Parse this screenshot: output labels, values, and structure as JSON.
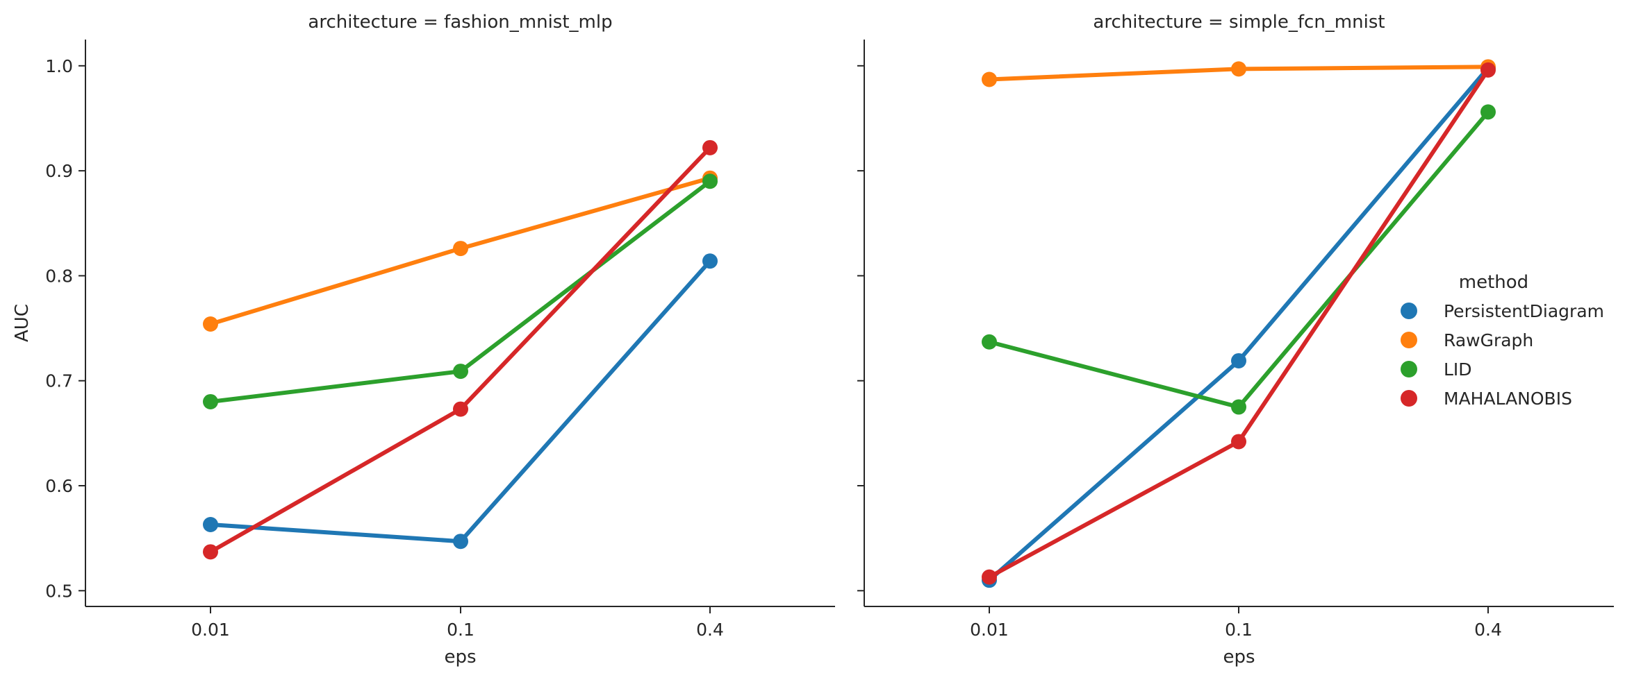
{
  "chart_data": [
    {
      "type": "line",
      "title": "architecture = fashion_mnist_mlp",
      "xlabel": "eps",
      "ylabel": "AUC",
      "categories": [
        "0.01",
        "0.1",
        "0.4"
      ],
      "ylim": [
        0.485,
        1.025
      ],
      "yticks": [
        "0.5",
        "0.6",
        "0.7",
        "0.8",
        "0.9",
        "1.0"
      ],
      "grid": false,
      "series": [
        {
          "name": "PersistentDiagram",
          "color": "#1f77b4",
          "values": [
            0.563,
            0.547,
            0.814
          ]
        },
        {
          "name": "RawGraph",
          "color": "#ff7f0e",
          "values": [
            0.754,
            0.826,
            0.893
          ]
        },
        {
          "name": "LID",
          "color": "#2ca02c",
          "values": [
            0.68,
            0.709,
            0.89
          ]
        },
        {
          "name": "MAHALANOBIS",
          "color": "#d62728",
          "values": [
            0.537,
            0.673,
            0.922
          ]
        }
      ]
    },
    {
      "type": "line",
      "title": "architecture = simple_fcn_mnist",
      "xlabel": "eps",
      "ylabel": "",
      "categories": [
        "0.01",
        "0.1",
        "0.4"
      ],
      "ylim": [
        0.485,
        1.025
      ],
      "yticks": [],
      "grid": false,
      "series": [
        {
          "name": "PersistentDiagram",
          "color": "#1f77b4",
          "values": [
            0.51,
            0.719,
            0.998
          ]
        },
        {
          "name": "RawGraph",
          "color": "#ff7f0e",
          "values": [
            0.987,
            0.997,
            0.999
          ]
        },
        {
          "name": "LID",
          "color": "#2ca02c",
          "values": [
            0.737,
            0.675,
            0.956
          ]
        },
        {
          "name": "MAHALANOBIS",
          "color": "#d62728",
          "values": [
            0.513,
            0.642,
            0.996
          ]
        }
      ]
    }
  ],
  "legend": {
    "title": "method",
    "placement": "right",
    "items": [
      {
        "label": "PersistentDiagram",
        "color": "#1f77b4"
      },
      {
        "label": "RawGraph",
        "color": "#ff7f0e"
      },
      {
        "label": "LID",
        "color": "#2ca02c"
      },
      {
        "label": "MAHALANOBIS",
        "color": "#d62728"
      }
    ]
  }
}
